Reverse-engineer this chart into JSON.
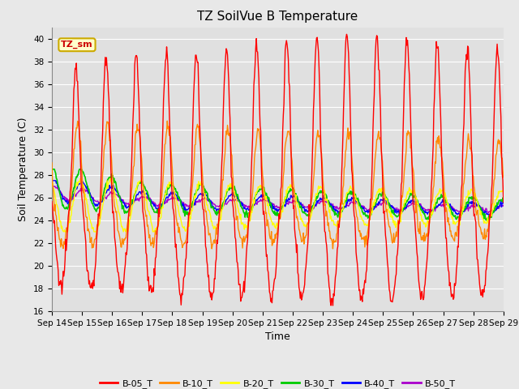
{
  "title": "TZ SoilVue B Temperature",
  "ylabel": "Soil Temperature (C)",
  "xlabel": "Time",
  "ylim": [
    16,
    41
  ],
  "yticks": [
    16,
    18,
    20,
    22,
    24,
    26,
    28,
    30,
    32,
    34,
    36,
    38,
    40
  ],
  "xtick_labels": [
    "Sep 14",
    "Sep 15",
    "Sep 16",
    "Sep 17",
    "Sep 18",
    "Sep 19",
    "Sep 20",
    "Sep 21",
    "Sep 22",
    "Sep 23",
    "Sep 24",
    "Sep 25",
    "Sep 26",
    "Sep 27",
    "Sep 28",
    "Sep 29"
  ],
  "series_colors": {
    "B-05_T": "#ff0000",
    "B-10_T": "#ff8800",
    "B-20_T": "#ffff00",
    "B-30_T": "#00cc00",
    "B-40_T": "#0000ff",
    "B-50_T": "#aa00cc"
  },
  "annotation_text": "TZ_sm",
  "annotation_color": "#cc0000",
  "annotation_bg": "#ffffcc",
  "annotation_edge": "#ccaa00",
  "fig_bg_color": "#e8e8e8",
  "plot_bg_color": "#e0e0e0",
  "grid_color": "#ffffff",
  "title_fontsize": 11,
  "axis_fontsize": 9,
  "tick_fontsize": 7.5
}
